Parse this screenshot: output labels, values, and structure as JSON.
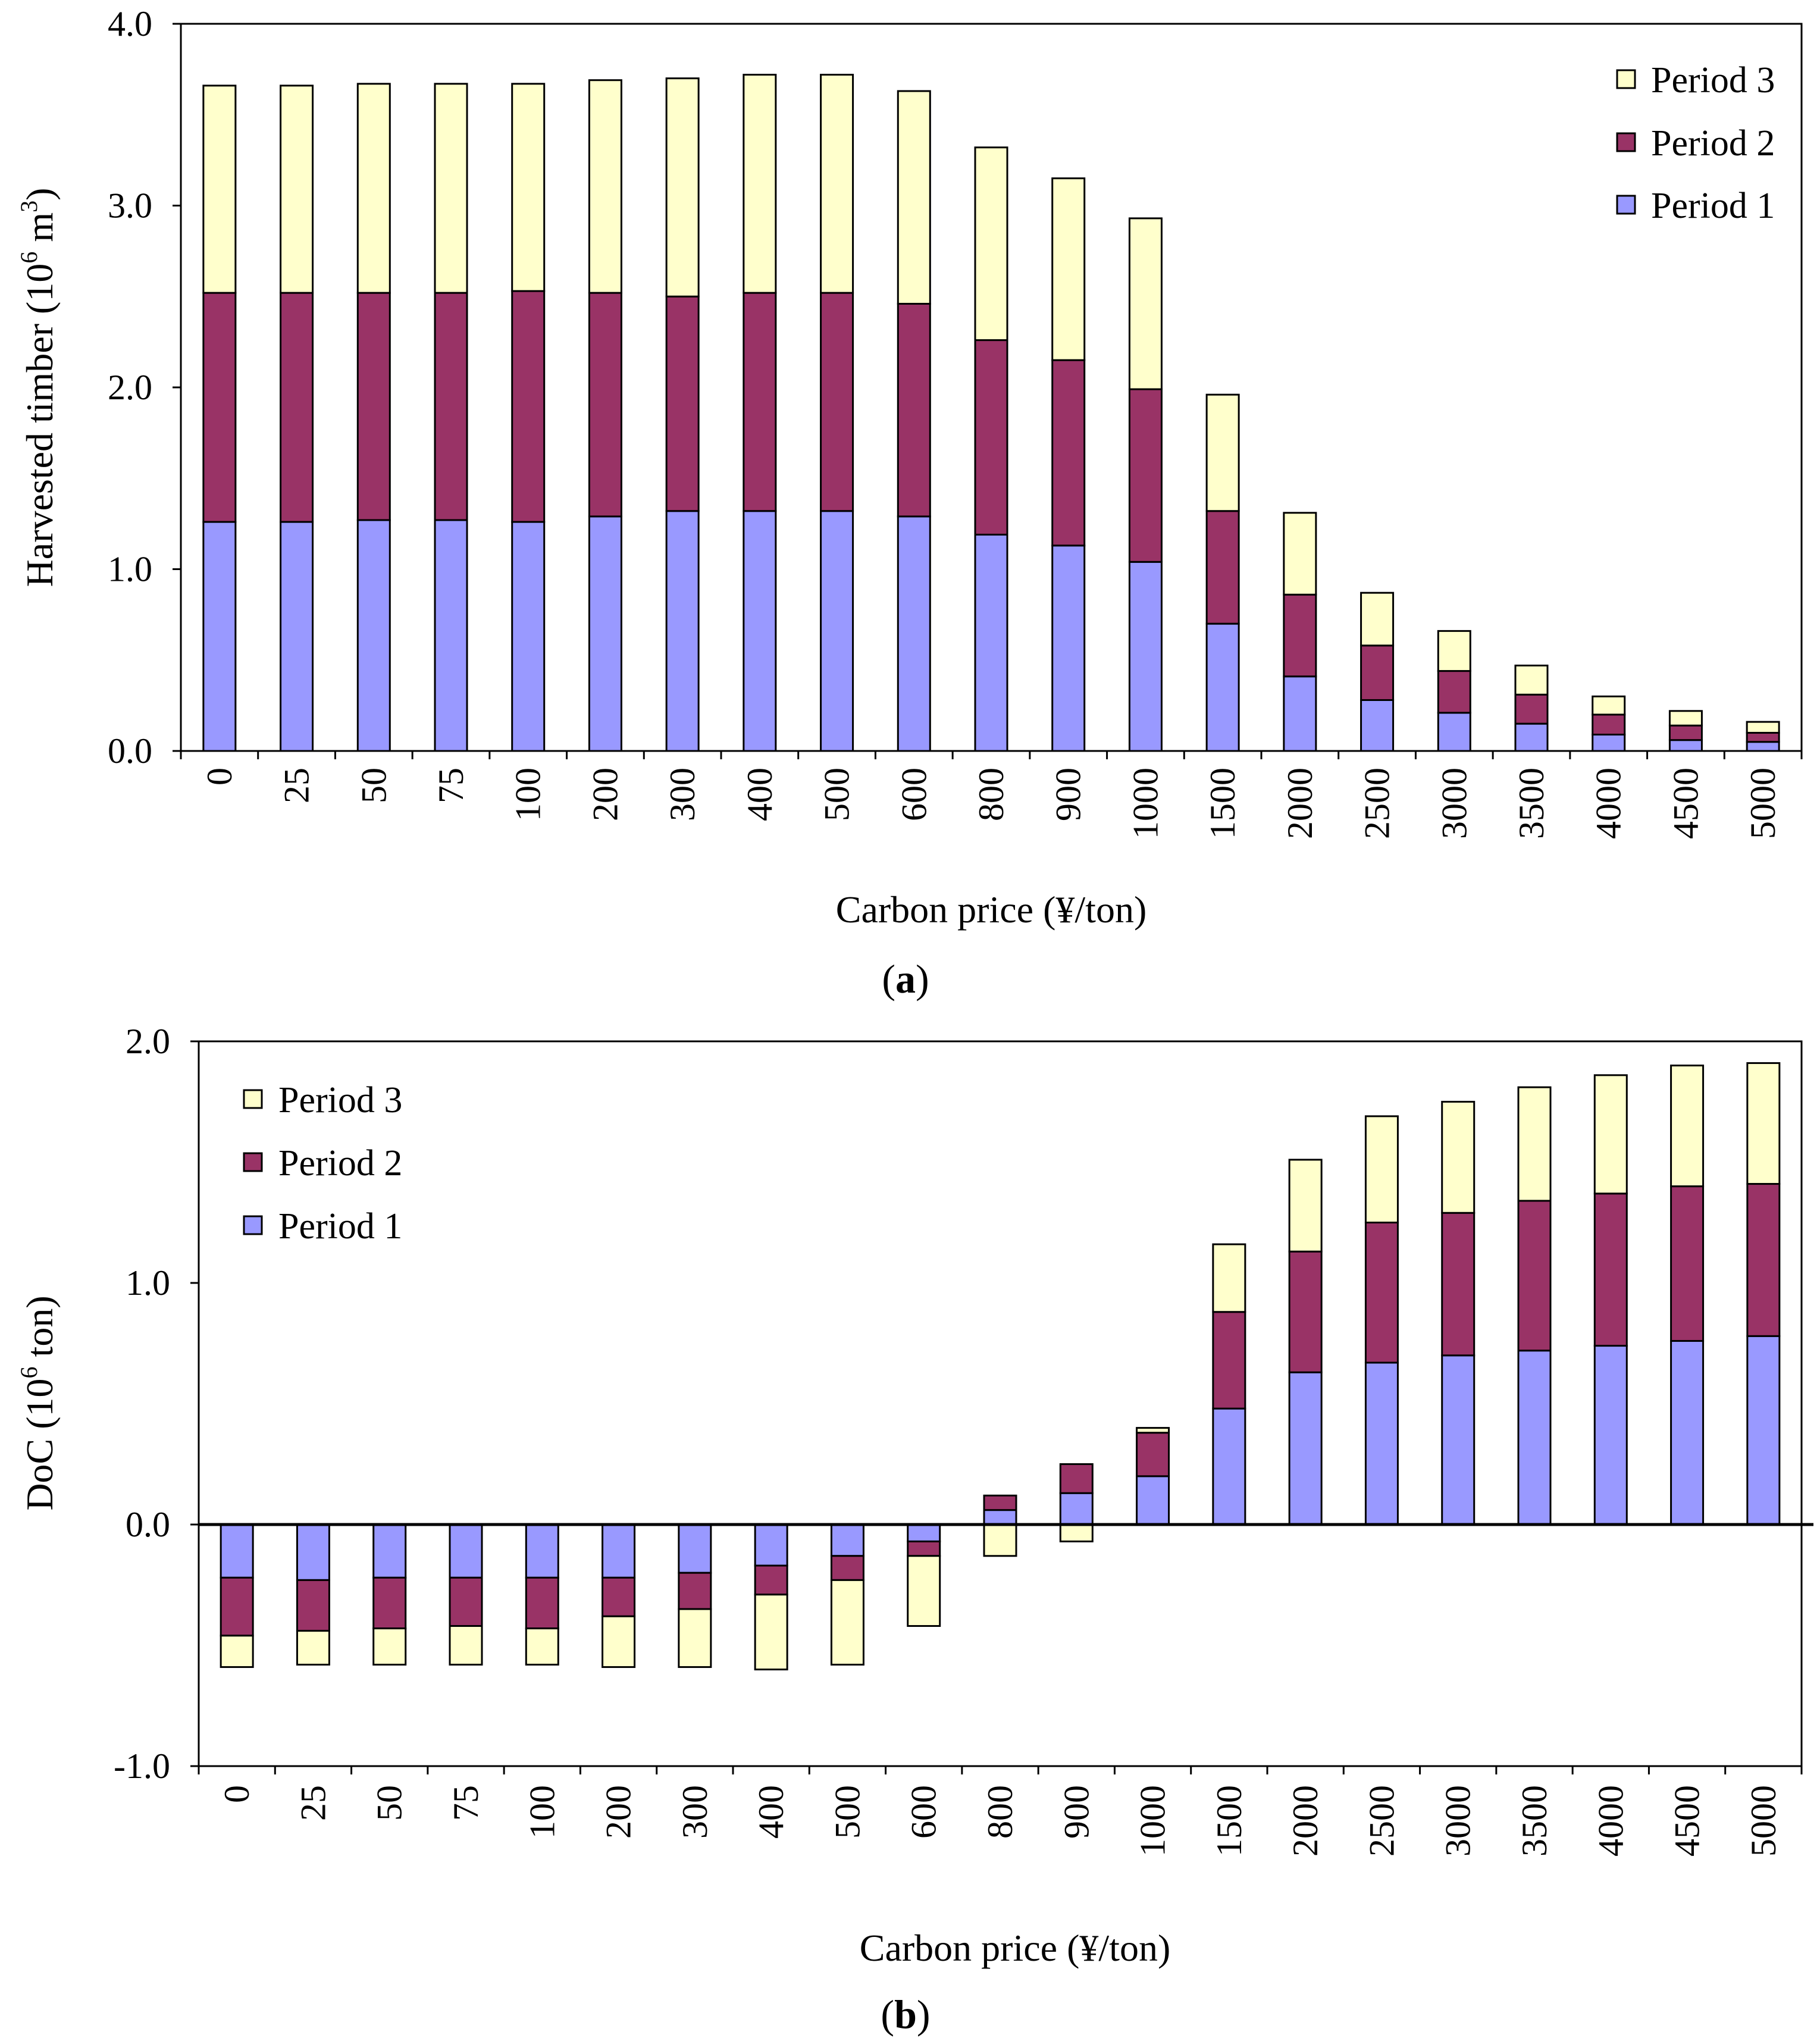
{
  "figure": {
    "colors": {
      "period1": "#9999ff",
      "period2": "#993366",
      "period3": "#ffffcc",
      "stroke": "#000000",
      "background": "#ffffff"
    }
  },
  "chart_data": [
    {
      "id": "a",
      "type": "bar",
      "stacked": true,
      "panel_label": "a",
      "categories": [
        "0",
        "25",
        "50",
        "75",
        "100",
        "200",
        "300",
        "400",
        "500",
        "600",
        "800",
        "900",
        "1000",
        "1500",
        "2000",
        "2500",
        "3000",
        "3500",
        "4000",
        "4500",
        "5000"
      ],
      "series": [
        {
          "name": "Period 1",
          "values": [
            1.26,
            1.26,
            1.27,
            1.27,
            1.26,
            1.29,
            1.32,
            1.32,
            1.32,
            1.29,
            1.19,
            1.13,
            1.04,
            0.7,
            0.41,
            0.28,
            0.21,
            0.15,
            0.09,
            0.06,
            0.05
          ]
        },
        {
          "name": "Period 2",
          "values": [
            1.26,
            1.26,
            1.25,
            1.25,
            1.27,
            1.23,
            1.18,
            1.2,
            1.2,
            1.17,
            1.07,
            1.02,
            0.95,
            0.62,
            0.45,
            0.3,
            0.23,
            0.16,
            0.11,
            0.08,
            0.05
          ]
        },
        {
          "name": "Period 3",
          "values": [
            1.14,
            1.14,
            1.15,
            1.15,
            1.14,
            1.17,
            1.2,
            1.2,
            1.2,
            1.17,
            1.06,
            1.0,
            0.94,
            0.64,
            0.45,
            0.29,
            0.22,
            0.16,
            0.1,
            0.08,
            0.06
          ]
        }
      ],
      "title": "",
      "xlabel": "Carbon price (¥/ton)",
      "ylabel_parts": [
        "Harvested timber (10",
        "6",
        " m",
        "3",
        ")"
      ],
      "ylim": [
        0,
        4
      ],
      "yticks": [
        "0.0",
        "1.0",
        "2.0",
        "3.0",
        "4.0"
      ],
      "legend_position": "top-right",
      "grid": false
    },
    {
      "id": "b",
      "type": "bar",
      "stacked": true,
      "panel_label": "b",
      "categories": [
        "0",
        "25",
        "50",
        "75",
        "100",
        "200",
        "300",
        "400",
        "500",
        "600",
        "800",
        "900",
        "1000",
        "1500",
        "2000",
        "2500",
        "3000",
        "3500",
        "4000",
        "4500",
        "5000"
      ],
      "series": [
        {
          "name": "Period 1",
          "values": [
            -0.22,
            -0.23,
            -0.22,
            -0.22,
            -0.22,
            -0.22,
            -0.2,
            -0.17,
            -0.13,
            -0.07,
            0.06,
            0.13,
            0.2,
            0.48,
            0.63,
            0.67,
            0.7,
            0.72,
            0.74,
            0.76,
            0.78
          ]
        },
        {
          "name": "Period 2",
          "values": [
            -0.24,
            -0.21,
            -0.21,
            -0.2,
            -0.21,
            -0.16,
            -0.15,
            -0.12,
            -0.1,
            -0.06,
            0.06,
            0.12,
            0.18,
            0.4,
            0.5,
            0.58,
            0.59,
            0.62,
            0.63,
            0.64,
            0.63
          ]
        },
        {
          "name": "Period 3",
          "values": [
            -0.13,
            -0.14,
            -0.15,
            -0.16,
            -0.15,
            -0.21,
            -0.24,
            -0.31,
            -0.35,
            -0.29,
            -0.13,
            -0.07,
            0.02,
            0.28,
            0.38,
            0.44,
            0.46,
            0.47,
            0.49,
            0.5,
            0.5
          ]
        }
      ],
      "title": "",
      "xlabel": "Carbon price (¥/ton)",
      "ylabel_parts": [
        "DoC (10",
        "6",
        " ton)"
      ],
      "ylim": [
        -1,
        2
      ],
      "yticks": [
        "-1.0",
        "0.0",
        "1.0",
        "2.0"
      ],
      "legend_position": "top-left",
      "grid": false
    }
  ]
}
